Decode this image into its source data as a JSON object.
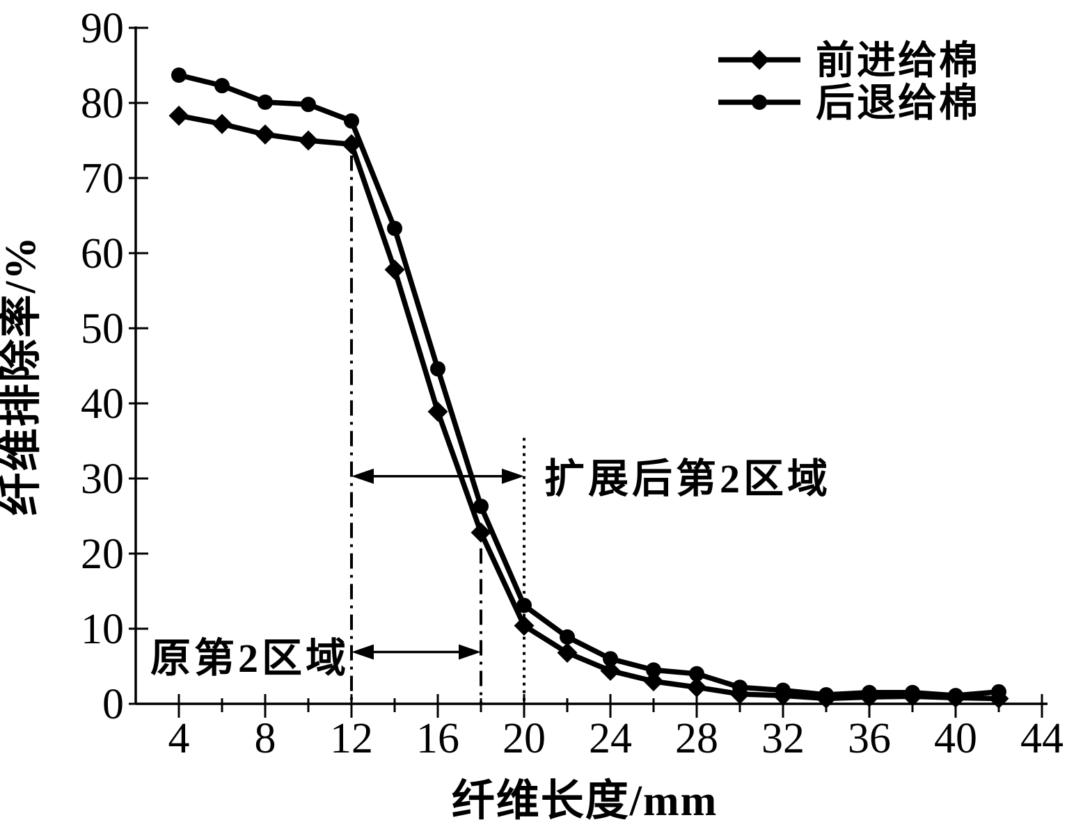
{
  "figure": {
    "background": "#ffffff"
  },
  "chart_data": {
    "type": "line",
    "title": "",
    "xlabel": "纤维长度/mm",
    "ylabel": "纤维排除率/%",
    "xlim": [
      2,
      44.3
    ],
    "ylim": [
      0,
      90
    ],
    "grid": false,
    "x_major_ticks": [
      4,
      8,
      12,
      16,
      20,
      24,
      28,
      32,
      36,
      40,
      44
    ],
    "x_minor_ticks": [
      6,
      10,
      14,
      18,
      22,
      26,
      30,
      34,
      38,
      42
    ],
    "y_ticks": [
      0,
      10,
      20,
      30,
      40,
      50,
      60,
      70,
      80,
      90
    ],
    "x": [
      4,
      6,
      8,
      10,
      12,
      14,
      16,
      18,
      20,
      22,
      24,
      26,
      28,
      30,
      32,
      34,
      36,
      38,
      40,
      42
    ],
    "series": [
      {
        "id": "forward-feed",
        "name": "前进给棉",
        "marker": "diamond",
        "color": "#000000",
        "values": [
          78.3,
          77.2,
          75.8,
          75.0,
          74.5,
          57.8,
          38.9,
          22.8,
          10.4,
          6.8,
          4.4,
          3.0,
          2.2,
          1.3,
          1.1,
          0.7,
          0.9,
          1.0,
          0.8,
          0.7
        ]
      },
      {
        "id": "backward-feed",
        "name": "后退给棉",
        "marker": "circle",
        "color": "#000000",
        "values": [
          83.7,
          82.3,
          80.1,
          79.8,
          77.6,
          63.3,
          44.6,
          26.3,
          13.1,
          8.9,
          6.0,
          4.5,
          4.0,
          2.2,
          1.8,
          1.2,
          1.5,
          1.5,
          1.1,
          1.6
        ]
      }
    ],
    "legend": {
      "position": "top-right"
    },
    "reference_lines": [
      {
        "x": 12,
        "style": "dash-dot",
        "y_top": 73.0
      },
      {
        "x": 18,
        "style": "dash-dot",
        "y_top": 20.7
      },
      {
        "x": 20,
        "style": "dotted",
        "y_top": 35.4
      }
    ],
    "annotations": [
      {
        "text": "扩展后第2区域",
        "arrow": {
          "from_x": 12,
          "to_x": 20,
          "y": 30.3
        }
      },
      {
        "text": "原第2区域",
        "arrow": {
          "from_x": 12,
          "to_x": 18,
          "y": 6.9
        }
      }
    ],
    "colors": {
      "foreground": "#000000",
      "background": "#ffffff"
    }
  }
}
